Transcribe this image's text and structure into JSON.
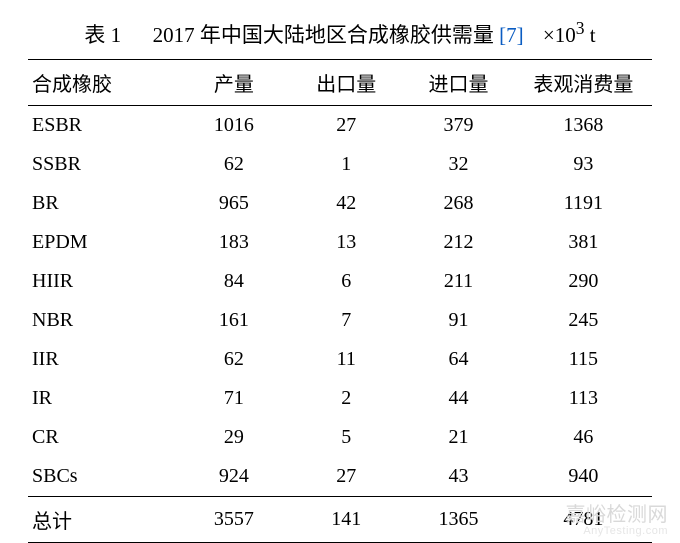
{
  "title": {
    "label": "表 1",
    "text": "2017 年中国大陆地区合成橡胶供需量",
    "ref": "[7]",
    "unit_prefix": "×10",
    "unit_exp": "3",
    "unit_suffix": " t"
  },
  "columns": [
    "合成橡胶",
    "产量",
    "出口量",
    "进口量",
    "表观消费量"
  ],
  "rows": [
    [
      "ESBR",
      "1016",
      "27",
      "379",
      "1368"
    ],
    [
      "SSBR",
      "62",
      "1",
      "32",
      "93"
    ],
    [
      "BR",
      "965",
      "42",
      "268",
      "1191"
    ],
    [
      "EPDM",
      "183",
      "13",
      "212",
      "381"
    ],
    [
      "HIIR",
      "84",
      "6",
      "211",
      "290"
    ],
    [
      "NBR",
      "161",
      "7",
      "91",
      "245"
    ],
    [
      "IIR",
      "62",
      "11",
      "64",
      "115"
    ],
    [
      "IR",
      "71",
      "2",
      "44",
      "113"
    ],
    [
      "CR",
      "29",
      "5",
      "21",
      "46"
    ],
    [
      "SBCs",
      "924",
      "27",
      "43",
      "940"
    ]
  ],
  "total": [
    "总计",
    "3557",
    "141",
    "1365",
    "4781"
  ],
  "watermark": {
    "main": "嘉峪检测网",
    "sub": "AnyTesting.com"
  },
  "style": {
    "ref_color": "#0a5cc2",
    "text_color": "#000000",
    "bg_color": "#ffffff",
    "watermark_color": "#d9d9d9"
  }
}
